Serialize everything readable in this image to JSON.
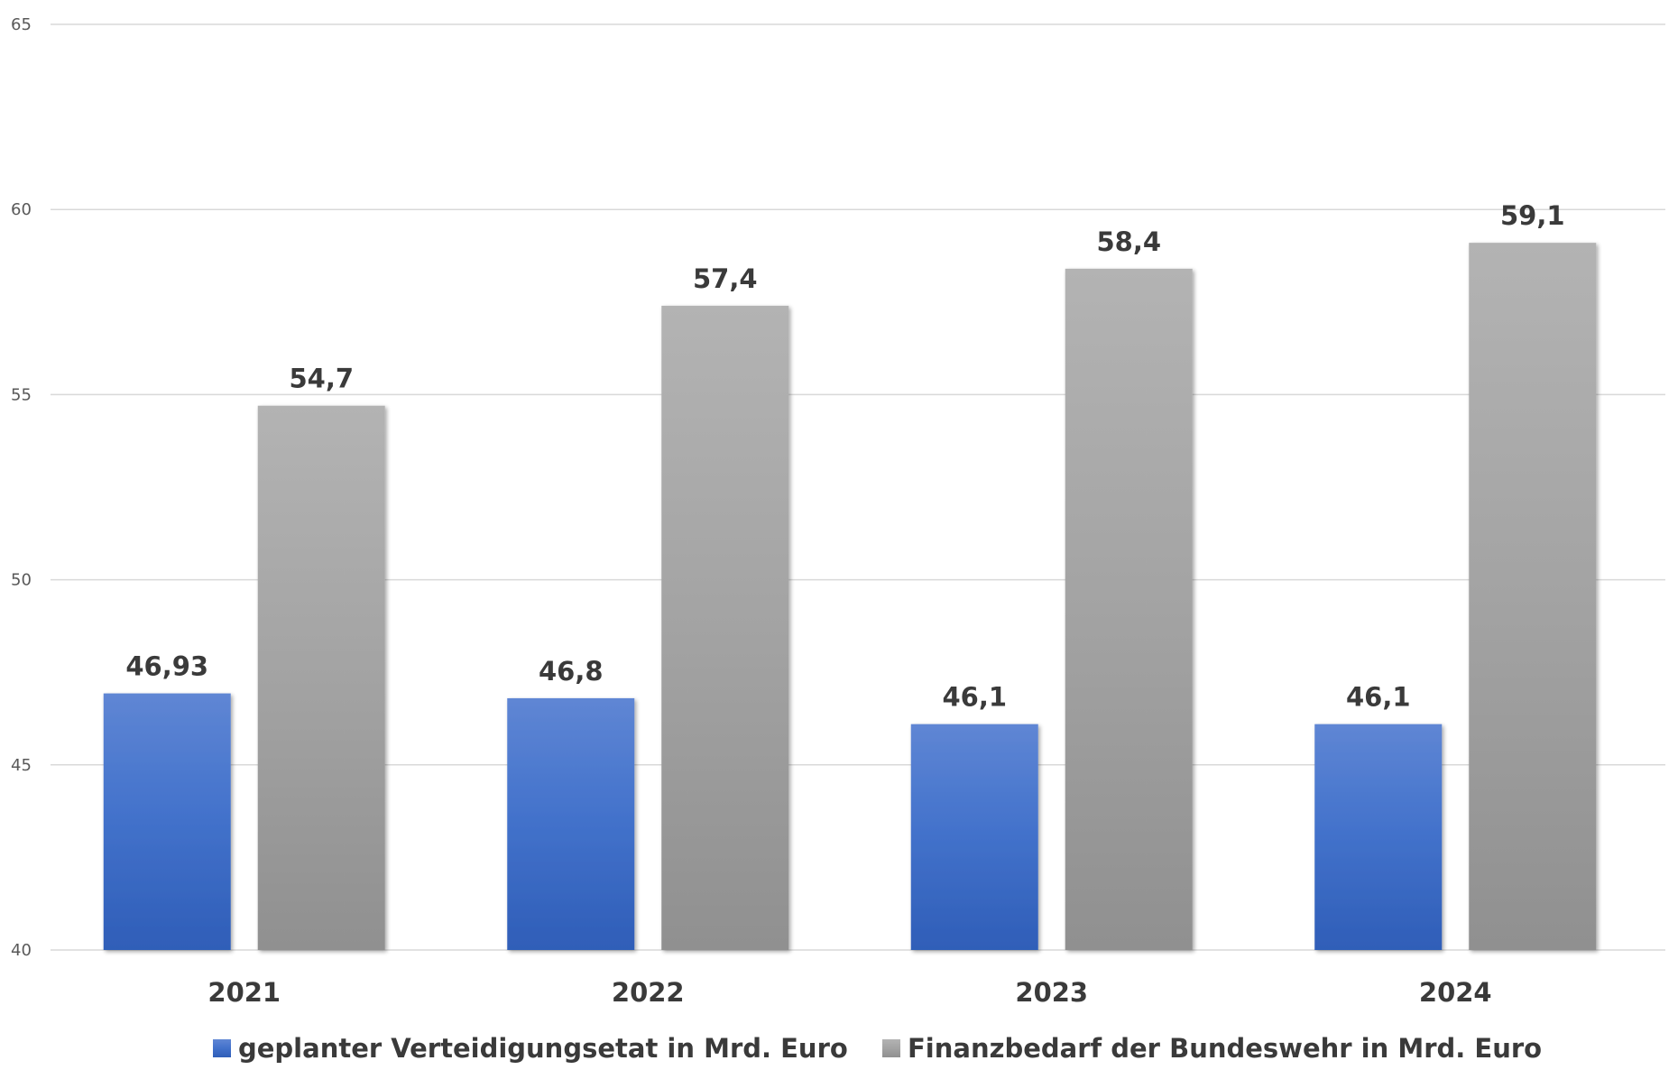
{
  "chart_data": {
    "type": "bar",
    "categories": [
      "2021",
      "2022",
      "2023",
      "2024"
    ],
    "series": [
      {
        "name": "geplanter Verteidigungsetat in Mrd. Euro",
        "values": [
          46.93,
          46.8,
          46.1,
          46.1
        ],
        "labels": [
          "46,93",
          "46,8",
          "46,1",
          "46,1"
        ],
        "color": "#3a6cc8"
      },
      {
        "name": "Finanzbedarf der Bundeswehr in Mrd. Euro",
        "values": [
          54.7,
          57.4,
          58.4,
          59.1
        ],
        "labels": [
          "54,7",
          "57,4",
          "58,4",
          "59,1"
        ],
        "color": "#a0a0a0"
      }
    ],
    "yticks": [
      "40",
      "45",
      "50",
      "55",
      "60",
      "65"
    ],
    "ylim": [
      40,
      65
    ],
    "grid": true,
    "legend_position": "bottom"
  }
}
